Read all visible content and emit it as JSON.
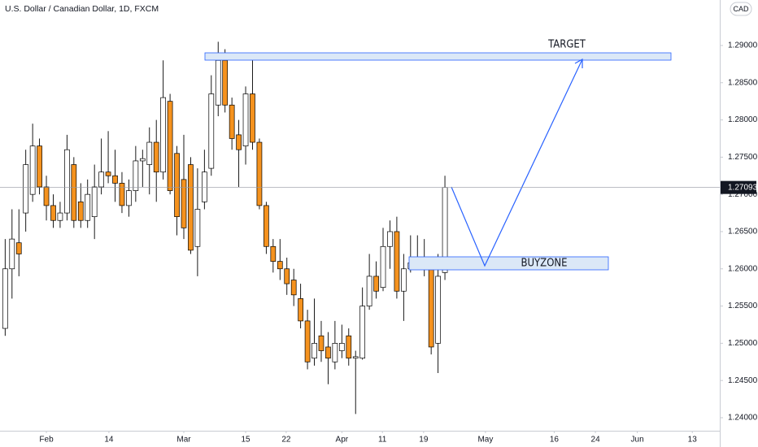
{
  "chart_data": {
    "type": "candlestick",
    "title": "U.S. Dollar / Canadian Dollar, 1D, FXCM",
    "currency": "CAD",
    "target_label": "TARGET",
    "buyzone_label": "BUYZONE",
    "last_price": 1.27093,
    "up_color": "#ffffff",
    "down_color": "#f5921e",
    "x": [
      -6,
      -5,
      -4,
      -3,
      -2,
      -1,
      0,
      1,
      2,
      3,
      4,
      5,
      6,
      7,
      8,
      9,
      10,
      11,
      12,
      13,
      14,
      15,
      16,
      17,
      18,
      19,
      20,
      21,
      22,
      23,
      24,
      25,
      26,
      27,
      28,
      29,
      30,
      31,
      32,
      33,
      34,
      35,
      36,
      37,
      38,
      39,
      40,
      41,
      42,
      43,
      44,
      45,
      46,
      47,
      48,
      49,
      50,
      51,
      52,
      53,
      54,
      55,
      56,
      57,
      58
    ],
    "open": [
      1.252,
      1.26,
      1.2635,
      1.2675,
      1.27,
      1.2765,
      1.271,
      1.2685,
      1.2665,
      1.2675,
      1.274,
      1.269,
      1.2665,
      1.267,
      1.271,
      1.273,
      1.2725,
      1.2715,
      1.2685,
      1.2705,
      1.2745,
      1.274,
      1.277,
      1.273,
      1.2825,
      1.2755,
      1.272,
      1.274,
      1.263,
      1.269,
      1.2735,
      1.282,
      1.288,
      1.282,
      1.278,
      1.2765,
      1.2835,
      1.277,
      1.2685,
      1.263,
      1.261,
      1.26,
      1.2585,
      1.256,
      1.253,
      1.248,
      1.251,
      1.2495,
      1.2475,
      1.249,
      1.251,
      1.248,
      1.248,
      1.255,
      1.259,
      1.2575,
      1.263,
      1.265,
      1.257,
      1.26,
      1.2608,
      1.261,
      1.2612,
      1.25,
      1.2595
    ],
    "high": [
      1.264,
      1.268,
      1.268,
      1.276,
      1.2795,
      1.2775,
      1.2725,
      1.27,
      1.269,
      1.278,
      1.275,
      1.2715,
      1.272,
      1.274,
      1.2775,
      1.2785,
      1.276,
      1.273,
      1.272,
      1.2765,
      1.276,
      1.279,
      1.28,
      1.288,
      1.2835,
      1.2765,
      1.278,
      1.275,
      1.2735,
      1.276,
      1.286,
      1.2905,
      1.2895,
      1.283,
      1.28,
      1.2845,
      1.288,
      1.2775,
      1.269,
      1.264,
      1.264,
      1.2615,
      1.26,
      1.258,
      1.2545,
      1.256,
      1.253,
      1.2515,
      1.253,
      1.2525,
      1.252,
      1.249,
      1.2575,
      1.262,
      1.261,
      1.2655,
      1.2665,
      1.267,
      1.262,
      1.2645,
      1.2645,
      1.264,
      1.2615,
      1.262,
      1.2725
    ],
    "low": [
      1.251,
      1.256,
      1.259,
      1.265,
      1.269,
      1.27,
      1.2665,
      1.2655,
      1.2655,
      1.2665,
      1.2655,
      1.2655,
      1.2655,
      1.264,
      1.27,
      1.2715,
      1.269,
      1.2675,
      1.267,
      1.269,
      1.271,
      1.27,
      1.269,
      1.272,
      1.27,
      1.2645,
      1.264,
      1.262,
      1.259,
      1.268,
      1.2725,
      1.2805,
      1.281,
      1.276,
      1.271,
      1.274,
      1.276,
      1.268,
      1.262,
      1.2595,
      1.2585,
      1.2565,
      1.255,
      1.252,
      1.2465,
      1.247,
      1.2475,
      1.2445,
      1.2465,
      1.248,
      1.247,
      1.2405,
      1.2478,
      1.2545,
      1.256,
      1.257,
      1.26,
      1.256,
      1.253,
      1.2595,
      1.26,
      1.259,
      1.2485,
      1.246,
      1.2585
    ],
    "close": [
      1.26,
      1.264,
      1.262,
      1.274,
      1.2765,
      1.271,
      1.2685,
      1.2665,
      1.2675,
      1.276,
      1.2665,
      1.2665,
      1.27,
      1.271,
      1.273,
      1.2725,
      1.2715,
      1.2685,
      1.2705,
      1.2745,
      1.2748,
      1.277,
      1.273,
      1.283,
      1.2705,
      1.267,
      1.2655,
      1.2625,
      1.268,
      1.273,
      1.2835,
      1.288,
      1.282,
      1.2775,
      1.276,
      1.2835,
      1.277,
      1.2685,
      1.263,
      1.261,
      1.26,
      1.258,
      1.2565,
      1.253,
      1.2475,
      1.25,
      1.249,
      1.248,
      1.25,
      1.25,
      1.248,
      1.2482,
      1.255,
      1.259,
      1.257,
      1.263,
      1.265,
      1.257,
      1.26,
      1.2608,
      1.261,
      1.2615,
      1.2495,
      1.259,
      1.27093
    ],
    "xlim": [
      -6.75,
      98
    ],
    "xticks": [
      {
        "value": 0,
        "label": "Feb"
      },
      {
        "value": 9.1,
        "label": "14"
      },
      {
        "value": 20,
        "label": "Mar"
      },
      {
        "value": 29,
        "label": "15"
      },
      {
        "value": 34.9,
        "label": "22"
      },
      {
        "value": 43,
        "label": "Apr"
      },
      {
        "value": 48.9,
        "label": "11"
      },
      {
        "value": 54.9,
        "label": "19"
      },
      {
        "value": 63.9,
        "label": "May"
      },
      {
        "value": 73.9,
        "label": "16"
      },
      {
        "value": 79.9,
        "label": "24"
      },
      {
        "value": 86,
        "label": "Jun"
      },
      {
        "value": 94,
        "label": "13"
      }
    ],
    "ylim": [
      1.23825,
      1.29611
    ],
    "yticks": [
      {
        "value": 1.24,
        "label": "1.24000"
      },
      {
        "value": 1.245,
        "label": "1.24500"
      },
      {
        "value": 1.25,
        "label": "1.25000"
      },
      {
        "value": 1.255,
        "label": "1.25500"
      },
      {
        "value": 1.26,
        "label": "1.26000"
      },
      {
        "value": 1.265,
        "label": "1.26500"
      },
      {
        "value": 1.27,
        "label": "1.27000"
      },
      {
        "value": 1.275,
        "label": "1.27500"
      },
      {
        "value": 1.28,
        "label": "1.28000"
      },
      {
        "value": 1.285,
        "label": "1.28500"
      },
      {
        "value": 1.29,
        "label": "1.29000"
      }
    ]
  }
}
